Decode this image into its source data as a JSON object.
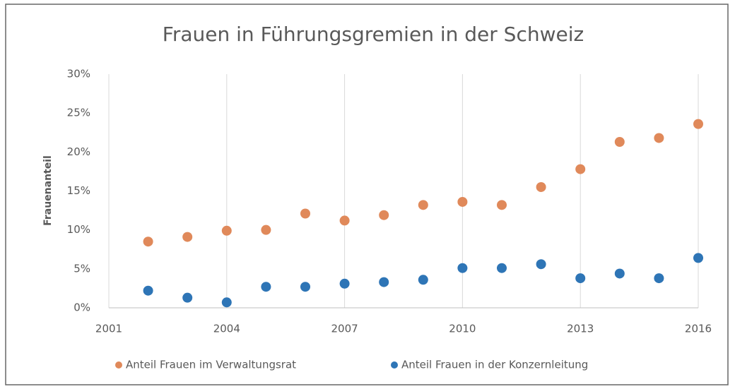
{
  "chart_data": {
    "type": "scatter",
    "title": "Frauen in Führungsgremien in der Schweiz",
    "y_label": "Frauenanteil",
    "series": [
      {
        "name": "Anteil Frauen im Verwaltungsrat",
        "color": "#e0895a",
        "x": [
          2002,
          2003,
          2004,
          2005,
          2006,
          2007,
          2008,
          2009,
          2010,
          2011,
          2012,
          2013,
          2014,
          2015,
          2016
        ],
        "values": [
          8.5,
          9.1,
          9.9,
          10.0,
          12.1,
          11.2,
          11.9,
          13.2,
          13.6,
          13.2,
          15.5,
          17.8,
          21.3,
          21.8,
          23.6
        ]
      },
      {
        "name": "Anteil Frauen in der Konzernleitung",
        "color": "#2e75b6",
        "x": [
          2002,
          2003,
          2004,
          2005,
          2006,
          2007,
          2008,
          2009,
          2010,
          2011,
          2012,
          2013,
          2014,
          2015,
          2016
        ],
        "values": [
          2.2,
          1.3,
          0.7,
          2.7,
          2.7,
          3.1,
          3.3,
          3.6,
          5.1,
          5.1,
          5.6,
          3.8,
          4.4,
          3.8,
          6.4
        ]
      }
    ],
    "xlim": [
      2001,
      2016
    ],
    "xticks": [
      2001,
      2004,
      2007,
      2010,
      2013,
      2016
    ],
    "ylim": [
      0,
      30
    ],
    "yticks": [
      {
        "value": 0,
        "label": "0%"
      },
      {
        "value": 5,
        "label": "5%"
      },
      {
        "value": 10,
        "label": "10%"
      },
      {
        "value": 15,
        "label": "15%"
      },
      {
        "value": 20,
        "label": "20%"
      },
      {
        "value": 25,
        "label": "25%"
      },
      {
        "value": 30,
        "label": "30%"
      }
    ],
    "grid": "x",
    "legend": "bottom"
  }
}
